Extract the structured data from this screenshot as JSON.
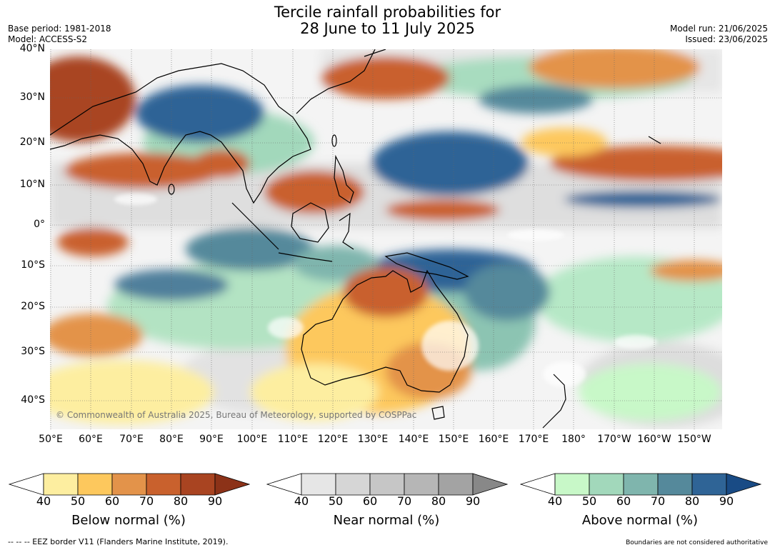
{
  "header": {
    "title_line1": "Tercile rainfall probabilities for",
    "title_line2": "28 June to 11 July 2025",
    "base_period": "Base period: 1981-2018",
    "model": "Model: ACCESS-S2",
    "model_run": "Model run: 21/06/2025",
    "issued": "Issued: 23/06/2025"
  },
  "map": {
    "lat_labels": [
      "40°N",
      "30°N",
      "20°N",
      "10°N",
      "0°",
      "10°S",
      "20°S",
      "30°S",
      "40°S"
    ],
    "lon_labels": [
      "50°E",
      "60°E",
      "70°E",
      "80°E",
      "90°E",
      "100°E",
      "110°E",
      "120°E",
      "130°E",
      "140°E",
      "150°E",
      "160°E",
      "170°E",
      "180°",
      "170°W",
      "160°W",
      "150°W"
    ],
    "copyright": "© Commonwealth of Australia 2025, Bureau of Meteorology, supported by COSPPac"
  },
  "colorbars": [
    {
      "label": "Below normal (%)",
      "ticks": [
        "40",
        "50",
        "60",
        "70",
        "80",
        "90"
      ],
      "colors": [
        "#fdeea0",
        "#fdc85d",
        "#e3934a",
        "#c9612d",
        "#a94421"
      ],
      "over_color": "#8c3218"
    },
    {
      "label": "Near normal (%)",
      "ticks": [
        "40",
        "50",
        "60",
        "70",
        "80",
        "90"
      ],
      "colors": [
        "#e6e6e6",
        "#d6d6d6",
        "#c6c6c6",
        "#b6b6b6",
        "#a3a3a3"
      ],
      "over_color": "#888888"
    },
    {
      "label": "Above normal (%)",
      "ticks": [
        "40",
        "50",
        "60",
        "70",
        "80",
        "90"
      ],
      "colors": [
        "#c8f8c8",
        "#a2d8bb",
        "#7fb5ad",
        "#55899b",
        "#2f6496"
      ],
      "over_color": "#194b85"
    }
  ],
  "footer": {
    "eez": "--  --  -- EEZ border V11 (Flanders Marine Institute, 2019).",
    "boundaries": "Boundaries are not considered authoritative"
  }
}
